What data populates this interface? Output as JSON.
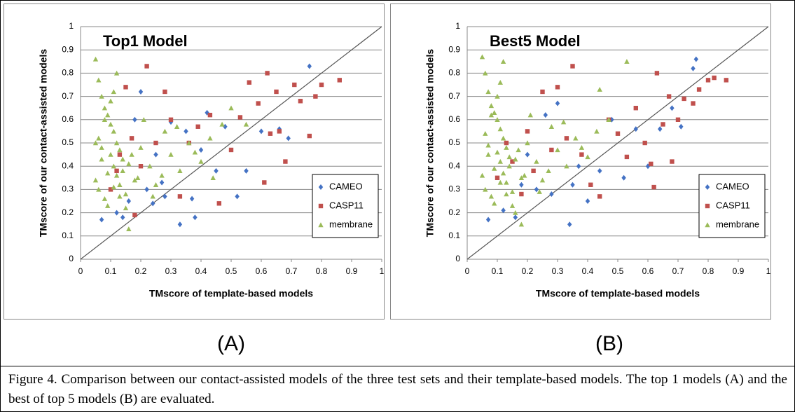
{
  "chart_data": [
    {
      "type": "scatter",
      "title": "Top1 Model",
      "xlabel": "TMscore of template-based models",
      "ylabel": "TMscore of our contact-assisted models",
      "xlim": [
        0,
        1
      ],
      "ylim": [
        0,
        1
      ],
      "xticks": [
        0,
        0.1,
        0.2,
        0.3,
        0.4,
        0.5,
        0.6,
        0.7,
        0.8,
        0.9,
        1
      ],
      "yticks": [
        0,
        0.1,
        0.2,
        0.3,
        0.4,
        0.5,
        0.6,
        0.7,
        0.8,
        0.9,
        1
      ],
      "grid": true,
      "legend": "center right",
      "diagonal": true,
      "series": [
        {
          "name": "CAMEO",
          "color": "#4472c4",
          "marker": "diamond",
          "x": [
            0.07,
            0.12,
            0.14,
            0.16,
            0.2,
            0.22,
            0.25,
            0.28,
            0.3,
            0.33,
            0.35,
            0.38,
            0.4,
            0.42,
            0.45,
            0.48,
            0.52,
            0.55,
            0.6,
            0.66,
            0.76,
            0.69,
            0.24,
            0.18,
            0.27,
            0.37
          ],
          "y": [
            0.17,
            0.2,
            0.18,
            0.25,
            0.72,
            0.3,
            0.45,
            0.27,
            0.59,
            0.15,
            0.55,
            0.18,
            0.47,
            0.63,
            0.38,
            0.57,
            0.27,
            0.38,
            0.55,
            0.56,
            0.83,
            0.52,
            0.24,
            0.6,
            0.33,
            0.26
          ]
        },
        {
          "name": "CASP11",
          "color": "#c0504d",
          "marker": "square",
          "x": [
            0.1,
            0.13,
            0.15,
            0.17,
            0.2,
            0.22,
            0.25,
            0.28,
            0.3,
            0.33,
            0.36,
            0.39,
            0.43,
            0.46,
            0.5,
            0.53,
            0.56,
            0.59,
            0.61,
            0.62,
            0.63,
            0.66,
            0.68,
            0.71,
            0.73,
            0.76,
            0.78,
            0.8,
            0.86,
            0.65,
            0.18,
            0.12
          ],
          "y": [
            0.3,
            0.45,
            0.74,
            0.52,
            0.4,
            0.83,
            0.5,
            0.72,
            0.6,
            0.27,
            0.5,
            0.57,
            0.62,
            0.24,
            0.47,
            0.61,
            0.76,
            0.67,
            0.33,
            0.8,
            0.54,
            0.55,
            0.42,
            0.75,
            0.68,
            0.53,
            0.7,
            0.75,
            0.77,
            0.72,
            0.19,
            0.38
          ]
        },
        {
          "name": "membrane",
          "color": "#9bbb59",
          "marker": "triangle",
          "x": [
            0.05,
            0.06,
            0.07,
            0.08,
            0.09,
            0.1,
            0.11,
            0.12,
            0.13,
            0.14,
            0.05,
            0.06,
            0.08,
            0.09,
            0.1,
            0.11,
            0.12,
            0.13,
            0.15,
            0.16,
            0.06,
            0.07,
            0.08,
            0.1,
            0.11,
            0.12,
            0.14,
            0.15,
            0.17,
            0.19,
            0.21,
            0.23,
            0.25,
            0.28,
            0.3,
            0.33,
            0.36,
            0.4,
            0.44,
            0.47,
            0.05,
            0.07,
            0.09,
            0.11,
            0.13,
            0.16,
            0.18,
            0.2,
            0.24,
            0.27,
            0.32,
            0.38,
            0.43,
            0.5,
            0.55
          ],
          "y": [
            0.86,
            0.77,
            0.7,
            0.65,
            0.62,
            0.58,
            0.55,
            0.5,
            0.47,
            0.43,
            0.34,
            0.3,
            0.26,
            0.23,
            0.45,
            0.4,
            0.36,
            0.32,
            0.28,
            0.13,
            0.52,
            0.48,
            0.6,
            0.68,
            0.72,
            0.8,
            0.38,
            0.22,
            0.45,
            0.35,
            0.6,
            0.4,
            0.32,
            0.55,
            0.45,
            0.38,
            0.5,
            0.42,
            0.35,
            0.58,
            0.5,
            0.43,
            0.37,
            0.31,
            0.27,
            0.41,
            0.34,
            0.48,
            0.27,
            0.36,
            0.57,
            0.46,
            0.52,
            0.65,
            0.58
          ]
        }
      ]
    },
    {
      "type": "scatter",
      "title": "Best5 Model",
      "xlabel": "TMscore of template-based models",
      "ylabel": "TMscore of our contact-assisted models",
      "xlim": [
        0,
        1
      ],
      "ylim": [
        0,
        1
      ],
      "xticks": [
        0,
        0.1,
        0.2,
        0.3,
        0.4,
        0.5,
        0.6,
        0.7,
        0.8,
        0.9,
        1
      ],
      "yticks": [
        0,
        0.1,
        0.2,
        0.3,
        0.4,
        0.5,
        0.6,
        0.7,
        0.8,
        0.9,
        1
      ],
      "grid": true,
      "legend": "center right",
      "diagonal": true,
      "series": [
        {
          "name": "CAMEO",
          "color": "#4472c4",
          "marker": "diamond",
          "x": [
            0.07,
            0.12,
            0.16,
            0.2,
            0.23,
            0.26,
            0.3,
            0.34,
            0.37,
            0.4,
            0.44,
            0.48,
            0.52,
            0.56,
            0.6,
            0.64,
            0.68,
            0.71,
            0.76,
            0.75,
            0.18,
            0.28,
            0.35
          ],
          "y": [
            0.17,
            0.21,
            0.18,
            0.45,
            0.3,
            0.62,
            0.67,
            0.15,
            0.4,
            0.25,
            0.38,
            0.6,
            0.35,
            0.56,
            0.4,
            0.56,
            0.65,
            0.57,
            0.86,
            0.82,
            0.32,
            0.28,
            0.32
          ]
        },
        {
          "name": "CASP11",
          "color": "#c0504d",
          "marker": "square",
          "x": [
            0.1,
            0.13,
            0.15,
            0.18,
            0.2,
            0.22,
            0.25,
            0.28,
            0.3,
            0.33,
            0.35,
            0.38,
            0.41,
            0.44,
            0.47,
            0.5,
            0.53,
            0.56,
            0.59,
            0.61,
            0.63,
            0.65,
            0.67,
            0.7,
            0.72,
            0.75,
            0.77,
            0.8,
            0.82,
            0.86,
            0.62,
            0.68
          ],
          "y": [
            0.35,
            0.5,
            0.42,
            0.28,
            0.55,
            0.38,
            0.72,
            0.47,
            0.74,
            0.52,
            0.83,
            0.45,
            0.32,
            0.27,
            0.6,
            0.54,
            0.44,
            0.65,
            0.5,
            0.41,
            0.8,
            0.58,
            0.7,
            0.6,
            0.69,
            0.67,
            0.73,
            0.77,
            0.78,
            0.77,
            0.31,
            0.42
          ]
        },
        {
          "name": "membrane",
          "color": "#9bbb59",
          "marker": "triangle",
          "x": [
            0.05,
            0.06,
            0.07,
            0.08,
            0.09,
            0.1,
            0.11,
            0.12,
            0.13,
            0.14,
            0.05,
            0.06,
            0.08,
            0.09,
            0.1,
            0.11,
            0.12,
            0.13,
            0.15,
            0.16,
            0.06,
            0.07,
            0.08,
            0.1,
            0.11,
            0.12,
            0.14,
            0.15,
            0.17,
            0.19,
            0.21,
            0.23,
            0.25,
            0.28,
            0.3,
            0.33,
            0.36,
            0.4,
            0.44,
            0.47,
            0.07,
            0.09,
            0.11,
            0.13,
            0.16,
            0.18,
            0.2,
            0.24,
            0.27,
            0.32,
            0.38,
            0.43,
            0.53,
            0.18
          ],
          "y": [
            0.87,
            0.8,
            0.72,
            0.66,
            0.63,
            0.6,
            0.56,
            0.52,
            0.48,
            0.44,
            0.36,
            0.3,
            0.27,
            0.24,
            0.46,
            0.42,
            0.37,
            0.33,
            0.29,
            0.2,
            0.54,
            0.49,
            0.62,
            0.7,
            0.76,
            0.85,
            0.4,
            0.23,
            0.47,
            0.36,
            0.62,
            0.42,
            0.34,
            0.57,
            0.47,
            0.4,
            0.52,
            0.44,
            0.73,
            0.6,
            0.45,
            0.39,
            0.33,
            0.28,
            0.43,
            0.35,
            0.5,
            0.29,
            0.38,
            0.59,
            0.48,
            0.55,
            0.85,
            0.15
          ]
        }
      ]
    }
  ],
  "panel_labels": [
    "(A)",
    "(B)"
  ],
  "caption": "Figure 4. Comparison between our contact-assisted models of the three test sets and their template-based models. The top 1 models (A) and the best of top 5 models (B) are evaluated."
}
